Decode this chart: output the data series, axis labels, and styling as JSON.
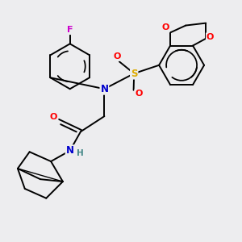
{
  "background_color": "#eeeeee",
  "atom_colors": {
    "C": "#000000",
    "N": "#0000cc",
    "O": "#ff0000",
    "S": "#ddaa00",
    "F": "#cc00cc",
    "H": "#448888"
  },
  "bond_color": "#000000",
  "bond_width": 1.4,
  "fig_bg": "#ededef"
}
